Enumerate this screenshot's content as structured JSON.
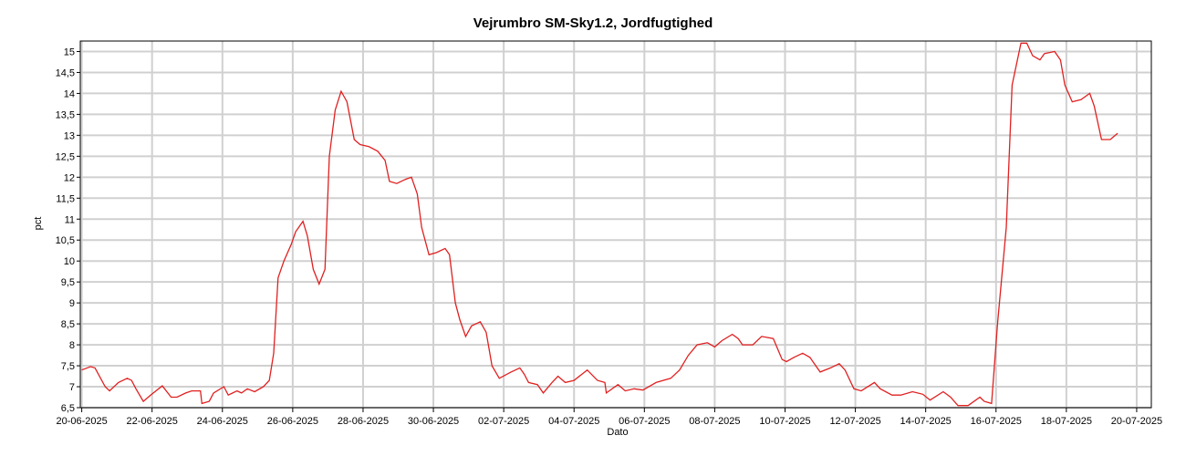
{
  "chart_data": {
    "type": "line",
    "title": "Vejrumbro SM-Sky1.2, Jordfugtighed",
    "x_label": "Dato",
    "y_label": "pct",
    "grid": true,
    "xlim": [
      "2025-06-19T23:00",
      "2025-07-20T10:00"
    ],
    "xticks": [
      {
        "value": "2025-06-20",
        "label": "20-06-2025"
      },
      {
        "value": "2025-06-22",
        "label": "22-06-2025"
      },
      {
        "value": "2025-06-24",
        "label": "24-06-2025"
      },
      {
        "value": "2025-06-26",
        "label": "26-06-2025"
      },
      {
        "value": "2025-06-28",
        "label": "28-06-2025"
      },
      {
        "value": "2025-06-30",
        "label": "30-06-2025"
      },
      {
        "value": "2025-07-02",
        "label": "02-07-2025"
      },
      {
        "value": "2025-07-04",
        "label": "04-07-2025"
      },
      {
        "value": "2025-07-06",
        "label": "06-07-2025"
      },
      {
        "value": "2025-07-08",
        "label": "08-07-2025"
      },
      {
        "value": "2025-07-10",
        "label": "10-07-2025"
      },
      {
        "value": "2025-07-12",
        "label": "12-07-2025"
      },
      {
        "value": "2025-07-14",
        "label": "14-07-2025"
      },
      {
        "value": "2025-07-16",
        "label": "16-07-2025"
      },
      {
        "value": "2025-07-18",
        "label": "18-07-2025"
      },
      {
        "value": "2025-07-20",
        "label": "20-07-2025"
      }
    ],
    "ylim": [
      6.5,
      15.25
    ],
    "yticks": [
      {
        "value": 6.5,
        "label": "6,5"
      },
      7,
      {
        "value": 7.5,
        "label": "7,5"
      },
      8,
      {
        "value": 8.5,
        "label": "8,5"
      },
      9,
      {
        "value": 9.5,
        "label": "9,5"
      },
      10,
      {
        "value": 10.5,
        "label": "10,5"
      },
      11,
      {
        "value": 11.5,
        "label": "11,5"
      },
      12,
      {
        "value": 12.5,
        "label": "12,5"
      },
      13,
      {
        "value": 13.5,
        "label": "13,5"
      },
      14,
      {
        "value": 14.5,
        "label": "14,5"
      },
      15
    ],
    "x": [
      "2025-06-20T00:00",
      "2025-06-20T06:00",
      "2025-06-20T09:00",
      "2025-06-20T16:00",
      "2025-06-20T19:00",
      "2025-06-21T01:00",
      "2025-06-21T07:00",
      "2025-06-21T10:00",
      "2025-06-21T13:00",
      "2025-06-21T18:00",
      "2025-06-21T23:00",
      "2025-06-22T07:00",
      "2025-06-22T13:00",
      "2025-06-22T17:00",
      "2025-06-22T23:00",
      "2025-06-23T03:00",
      "2025-06-23T09:00",
      "2025-06-23T10:00",
      "2025-06-23T15:00",
      "2025-06-23T18:00",
      "2025-06-24T01:00",
      "2025-06-24T04:00",
      "2025-06-24T10:00",
      "2025-06-24T13:00",
      "2025-06-24T17:00",
      "2025-06-24T22:00",
      "2025-06-25T04:00",
      "2025-06-25T08:00",
      "2025-06-25T11:00",
      "2025-06-25T14:00",
      "2025-06-25T18:00",
      "2025-06-25T23:00",
      "2025-06-26T02:00",
      "2025-06-26T07:00",
      "2025-06-26T10:00",
      "2025-06-26T14:00",
      "2025-06-26T18:00",
      "2025-06-26T22:00",
      "2025-06-27T01:00",
      "2025-06-27T05:00",
      "2025-06-27T09:00",
      "2025-06-27T13:00",
      "2025-06-27T18:00",
      "2025-06-27T22:00",
      "2025-06-28T04:00",
      "2025-06-28T10:00",
      "2025-06-28T15:00",
      "2025-06-28T18:00",
      "2025-06-28T23:00",
      "2025-06-29T05:00",
      "2025-06-29T09:00",
      "2025-06-29T13:00",
      "2025-06-29T16:00",
      "2025-06-29T21:00",
      "2025-06-30T02:00",
      "2025-06-30T08:00",
      "2025-06-30T11:00",
      "2025-06-30T15:00",
      "2025-06-30T18:00",
      "2025-06-30T22:00",
      "2025-07-01T02:00",
      "2025-07-01T08:00",
      "2025-07-01T12:00",
      "2025-07-01T16:00",
      "2025-07-01T21:00",
      "2025-07-02T05:00",
      "2025-07-02T11:00",
      "2025-07-02T14:00",
      "2025-07-02T17:00",
      "2025-07-02T23:00",
      "2025-07-03T03:00",
      "2025-07-03T09:00",
      "2025-07-03T13:00",
      "2025-07-03T18:00",
      "2025-07-04T00:00",
      "2025-07-04T09:00",
      "2025-07-04T16:00",
      "2025-07-04T21:00",
      "2025-07-04T22:00",
      "2025-07-05T06:00",
      "2025-07-05T11:00",
      "2025-07-05T17:00",
      "2025-07-05T23:00",
      "2025-07-06T08:00",
      "2025-07-06T18:00",
      "2025-07-07T00:00",
      "2025-07-07T06:00",
      "2025-07-07T12:00",
      "2025-07-07T19:00",
      "2025-07-08T00:00",
      "2025-07-08T05:00",
      "2025-07-08T12:00",
      "2025-07-08T16:00",
      "2025-07-08T19:00",
      "2025-07-09T02:00",
      "2025-07-09T08:00",
      "2025-07-09T16:00",
      "2025-07-09T22:00",
      "2025-07-10T01:00",
      "2025-07-10T06:00",
      "2025-07-10T12:00",
      "2025-07-10T17:00",
      "2025-07-11T00:00",
      "2025-07-11T07:00",
      "2025-07-11T13:00",
      "2025-07-11T17:00",
      "2025-07-11T23:00",
      "2025-07-12T04:00",
      "2025-07-12T13:00",
      "2025-07-12T17:00",
      "2025-07-13T01:00",
      "2025-07-13T07:00",
      "2025-07-13T15:00",
      "2025-07-13T22:00",
      "2025-07-14T03:00",
      "2025-07-14T12:00",
      "2025-07-14T17:00",
      "2025-07-14T22:00",
      "2025-07-15T05:00",
      "2025-07-15T13:00",
      "2025-07-15T16:00",
      "2025-07-15T21:00",
      "2025-07-16T01:00",
      "2025-07-16T07:00",
      "2025-07-16T11:00",
      "2025-07-16T17:00",
      "2025-07-16T21:00",
      "2025-07-17T01:00",
      "2025-07-17T06:00",
      "2025-07-17T09:00",
      "2025-07-17T16:00",
      "2025-07-17T20:00",
      "2025-07-17T23:00",
      "2025-07-18T04:00",
      "2025-07-18T10:00",
      "2025-07-18T16:00",
      "2025-07-18T19:00",
      "2025-07-19T00:00",
      "2025-07-19T06:00",
      "2025-07-19T11:00"
    ],
    "series": [
      {
        "color": "#e02020",
        "values": [
          7.4,
          7.48,
          7.45,
          7.0,
          6.9,
          7.1,
          7.2,
          7.15,
          6.95,
          6.65,
          6.8,
          7.02,
          6.75,
          6.75,
          6.85,
          6.9,
          6.9,
          6.6,
          6.65,
          6.85,
          7.0,
          6.8,
          6.9,
          6.85,
          6.95,
          6.88,
          7.0,
          7.15,
          7.8,
          9.6,
          10.0,
          10.4,
          10.7,
          10.95,
          10.6,
          9.8,
          9.45,
          9.8,
          12.5,
          13.6,
          14.05,
          13.8,
          12.9,
          12.78,
          12.73,
          12.62,
          12.4,
          11.9,
          11.85,
          11.95,
          12.0,
          11.6,
          10.8,
          10.15,
          10.2,
          10.3,
          10.15,
          9.0,
          8.6,
          8.2,
          8.45,
          8.55,
          8.3,
          7.5,
          7.2,
          7.35,
          7.45,
          7.3,
          7.1,
          7.05,
          6.85,
          7.1,
          7.25,
          7.1,
          7.15,
          7.4,
          7.15,
          7.1,
          6.85,
          7.05,
          6.9,
          6.95,
          6.92,
          7.1,
          7.2,
          7.4,
          7.75,
          8.0,
          8.05,
          7.95,
          8.1,
          8.25,
          8.15,
          8.0,
          8.0,
          8.2,
          8.15,
          7.65,
          7.6,
          7.7,
          7.8,
          7.7,
          7.35,
          7.45,
          7.55,
          7.4,
          6.95,
          6.9,
          7.1,
          6.95,
          6.8,
          6.8,
          6.88,
          6.82,
          6.68,
          6.88,
          6.75,
          6.55,
          6.55,
          6.75,
          6.65,
          6.6,
          8.5,
          10.8,
          14.2,
          15.2,
          15.2,
          14.9,
          14.8,
          14.95,
          15.0,
          14.8,
          14.2,
          13.8,
          13.85,
          14.0,
          13.7,
          12.9,
          12.9,
          13.05
        ]
      }
    ]
  }
}
